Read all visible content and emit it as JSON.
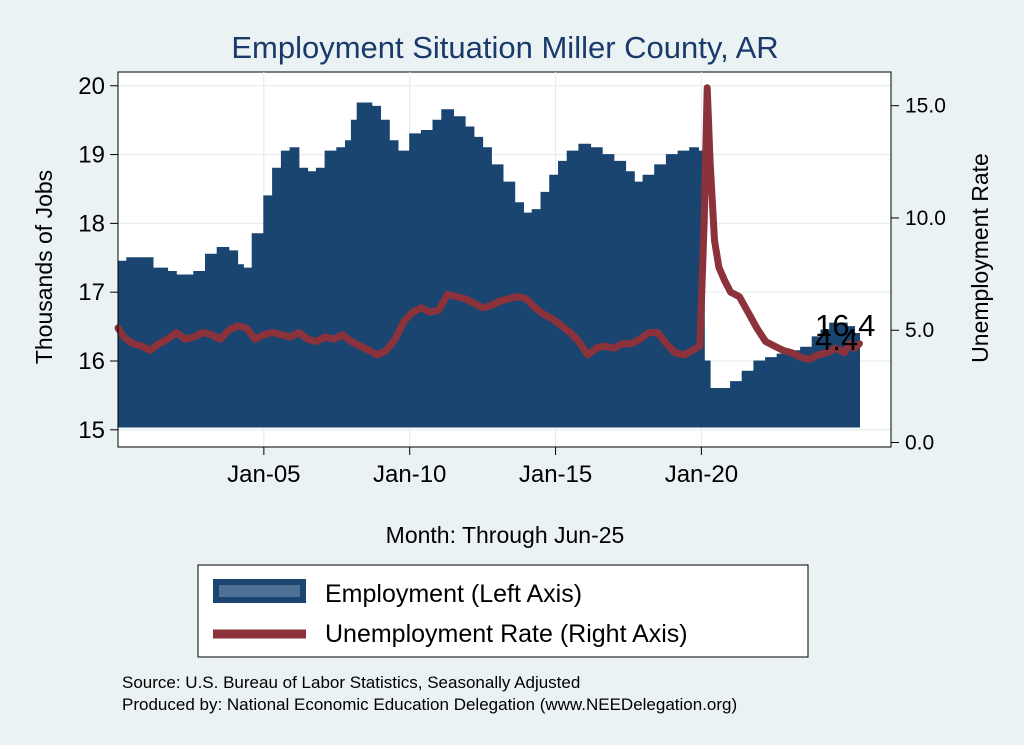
{
  "chart_data": {
    "type": "area+line",
    "title": "Employment Situation Miller  County, AR",
    "xlabel": "Month: Through Jun-25",
    "ylabel_left": "Thousands of Jobs",
    "ylabel_right": "Unemployment Rate",
    "x_ticks": [
      {
        "label": "Jan-05",
        "year": 2005.0
      },
      {
        "label": "Jan-10",
        "year": 2010.0
      },
      {
        "label": "Jan-15",
        "year": 2015.0
      },
      {
        "label": "Jan-20",
        "year": 2020.0
      }
    ],
    "y_left_ticks": [
      "15",
      "16",
      "17",
      "18",
      "19",
      "20"
    ],
    "y_left_range": [
      14.75,
      20.2
    ],
    "y_right_ticks": [
      "0.0",
      "5.0",
      "10.0",
      "15.0"
    ],
    "y_right_range": [
      -0.2,
      16.5
    ],
    "x_range": [
      2000.0,
      2026.5
    ],
    "end_labels": {
      "employment": "16.4",
      "unemployment": "4.4"
    },
    "series": [
      {
        "name": "Employment (Left Axis)",
        "axis": "left",
        "style": "area",
        "color": "#1a4570",
        "points": [
          [
            2000.0,
            17.45
          ],
          [
            2000.3,
            17.5
          ],
          [
            2000.9,
            17.5
          ],
          [
            2001.2,
            17.35
          ],
          [
            2001.7,
            17.3
          ],
          [
            2002.0,
            17.25
          ],
          [
            2002.6,
            17.3
          ],
          [
            2003.0,
            17.55
          ],
          [
            2003.4,
            17.65
          ],
          [
            2003.8,
            17.6
          ],
          [
            2004.1,
            17.4
          ],
          [
            2004.3,
            17.35
          ],
          [
            2004.6,
            17.85
          ],
          [
            2005.0,
            18.4
          ],
          [
            2005.3,
            18.8
          ],
          [
            2005.6,
            19.05
          ],
          [
            2005.9,
            19.1
          ],
          [
            2006.2,
            18.8
          ],
          [
            2006.5,
            18.75
          ],
          [
            2006.8,
            18.8
          ],
          [
            2007.1,
            19.05
          ],
          [
            2007.5,
            19.1
          ],
          [
            2007.8,
            19.2
          ],
          [
            2008.0,
            19.5
          ],
          [
            2008.2,
            19.75
          ],
          [
            2008.7,
            19.7
          ],
          [
            2009.0,
            19.5
          ],
          [
            2009.3,
            19.2
          ],
          [
            2009.6,
            19.05
          ],
          [
            2010.0,
            19.3
          ],
          [
            2010.4,
            19.35
          ],
          [
            2010.8,
            19.5
          ],
          [
            2011.1,
            19.65
          ],
          [
            2011.5,
            19.55
          ],
          [
            2011.9,
            19.4
          ],
          [
            2012.2,
            19.25
          ],
          [
            2012.5,
            19.1
          ],
          [
            2012.8,
            18.85
          ],
          [
            2013.2,
            18.6
          ],
          [
            2013.6,
            18.3
          ],
          [
            2013.9,
            18.15
          ],
          [
            2014.2,
            18.2
          ],
          [
            2014.5,
            18.45
          ],
          [
            2014.8,
            18.7
          ],
          [
            2015.1,
            18.9
          ],
          [
            2015.4,
            19.05
          ],
          [
            2015.8,
            19.15
          ],
          [
            2016.2,
            19.1
          ],
          [
            2016.6,
            19.0
          ],
          [
            2017.0,
            18.9
          ],
          [
            2017.4,
            18.75
          ],
          [
            2017.7,
            18.6
          ],
          [
            2018.0,
            18.7
          ],
          [
            2018.4,
            18.85
          ],
          [
            2018.8,
            19.0
          ],
          [
            2019.2,
            19.05
          ],
          [
            2019.6,
            19.1
          ],
          [
            2019.9,
            19.05
          ],
          [
            2020.1,
            16.0
          ],
          [
            2020.3,
            15.6
          ],
          [
            2020.7,
            15.6
          ],
          [
            2021.0,
            15.7
          ],
          [
            2021.4,
            15.85
          ],
          [
            2021.8,
            16.0
          ],
          [
            2022.2,
            16.05
          ],
          [
            2022.6,
            16.1
          ],
          [
            2023.0,
            16.15
          ],
          [
            2023.4,
            16.2
          ],
          [
            2023.8,
            16.35
          ],
          [
            2024.1,
            16.45
          ],
          [
            2024.4,
            16.55
          ],
          [
            2024.7,
            16.55
          ],
          [
            2025.0,
            16.5
          ],
          [
            2025.25,
            16.4
          ],
          [
            2025.42,
            16.4
          ]
        ]
      },
      {
        "name": "Unemployment Rate (Right Axis)",
        "axis": "right",
        "style": "line",
        "color": "#8b323b",
        "points": [
          [
            2000.0,
            5.1
          ],
          [
            2000.2,
            4.7
          ],
          [
            2000.5,
            4.4
          ],
          [
            2000.8,
            4.3
          ],
          [
            2001.1,
            4.1
          ],
          [
            2001.4,
            4.4
          ],
          [
            2001.7,
            4.6
          ],
          [
            2002.0,
            4.9
          ],
          [
            2002.3,
            4.6
          ],
          [
            2002.6,
            4.7
          ],
          [
            2002.9,
            4.9
          ],
          [
            2003.2,
            4.8
          ],
          [
            2003.5,
            4.6
          ],
          [
            2003.8,
            5.0
          ],
          [
            2004.1,
            5.2
          ],
          [
            2004.4,
            5.1
          ],
          [
            2004.7,
            4.6
          ],
          [
            2005.0,
            4.8
          ],
          [
            2005.3,
            4.9
          ],
          [
            2005.6,
            4.8
          ],
          [
            2005.9,
            4.7
          ],
          [
            2006.2,
            4.9
          ],
          [
            2006.5,
            4.6
          ],
          [
            2006.8,
            4.5
          ],
          [
            2007.1,
            4.7
          ],
          [
            2007.4,
            4.6
          ],
          [
            2007.7,
            4.8
          ],
          [
            2008.0,
            4.5
          ],
          [
            2008.3,
            4.3
          ],
          [
            2008.6,
            4.1
          ],
          [
            2008.9,
            3.9
          ],
          [
            2009.2,
            4.1
          ],
          [
            2009.5,
            4.6
          ],
          [
            2009.8,
            5.4
          ],
          [
            2010.1,
            5.8
          ],
          [
            2010.4,
            6.0
          ],
          [
            2010.7,
            5.8
          ],
          [
            2011.0,
            5.9
          ],
          [
            2011.3,
            6.6
          ],
          [
            2011.6,
            6.5
          ],
          [
            2011.9,
            6.4
          ],
          [
            2012.2,
            6.2
          ],
          [
            2012.5,
            6.0
          ],
          [
            2012.8,
            6.1
          ],
          [
            2013.1,
            6.3
          ],
          [
            2013.4,
            6.4
          ],
          [
            2013.7,
            6.5
          ],
          [
            2014.0,
            6.4
          ],
          [
            2014.3,
            6.0
          ],
          [
            2014.6,
            5.7
          ],
          [
            2014.9,
            5.5
          ],
          [
            2015.2,
            5.2
          ],
          [
            2015.5,
            4.9
          ],
          [
            2015.8,
            4.5
          ],
          [
            2016.1,
            3.9
          ],
          [
            2016.4,
            4.2
          ],
          [
            2016.7,
            4.3
          ],
          [
            2017.0,
            4.2
          ],
          [
            2017.3,
            4.4
          ],
          [
            2017.6,
            4.4
          ],
          [
            2017.9,
            4.6
          ],
          [
            2018.2,
            4.9
          ],
          [
            2018.5,
            4.9
          ],
          [
            2018.8,
            4.4
          ],
          [
            2019.1,
            4.0
          ],
          [
            2019.4,
            3.9
          ],
          [
            2019.7,
            4.1
          ],
          [
            2019.95,
            4.3
          ],
          [
            2020.1,
            10.0
          ],
          [
            2020.2,
            15.8
          ],
          [
            2020.3,
            12.5
          ],
          [
            2020.45,
            9.0
          ],
          [
            2020.6,
            7.8
          ],
          [
            2020.8,
            7.2
          ],
          [
            2021.0,
            6.7
          ],
          [
            2021.3,
            6.5
          ],
          [
            2021.6,
            5.8
          ],
          [
            2021.9,
            5.1
          ],
          [
            2022.2,
            4.5
          ],
          [
            2022.5,
            4.3
          ],
          [
            2022.8,
            4.1
          ],
          [
            2023.1,
            4.0
          ],
          [
            2023.4,
            3.8
          ],
          [
            2023.7,
            3.7
          ],
          [
            2024.0,
            3.9
          ],
          [
            2024.3,
            4.0
          ],
          [
            2024.6,
            4.2
          ],
          [
            2024.9,
            4.0
          ],
          [
            2025.1,
            4.4
          ],
          [
            2025.25,
            4.2
          ],
          [
            2025.42,
            4.4
          ]
        ]
      }
    ],
    "legend": [
      {
        "label": "Employment (Left Axis)",
        "swatch": "area"
      },
      {
        "label": "Unemployment Rate (Right Axis)",
        "swatch": "line"
      }
    ],
    "legend_position": "bottom"
  },
  "notes": {
    "source": "Source: U.S. Bureau of Labor Statistics, Seasonally Adjusted",
    "produced": "Produced by: National Economic Education Delegation (www.NEEDelegation.org)"
  },
  "colors": {
    "background": "#eaf2f3",
    "plot_bg": "#ffffff",
    "grid": "#e2ebed",
    "area": "#1a4570",
    "line": "#8b323b",
    "title": "#1a3a6b"
  }
}
